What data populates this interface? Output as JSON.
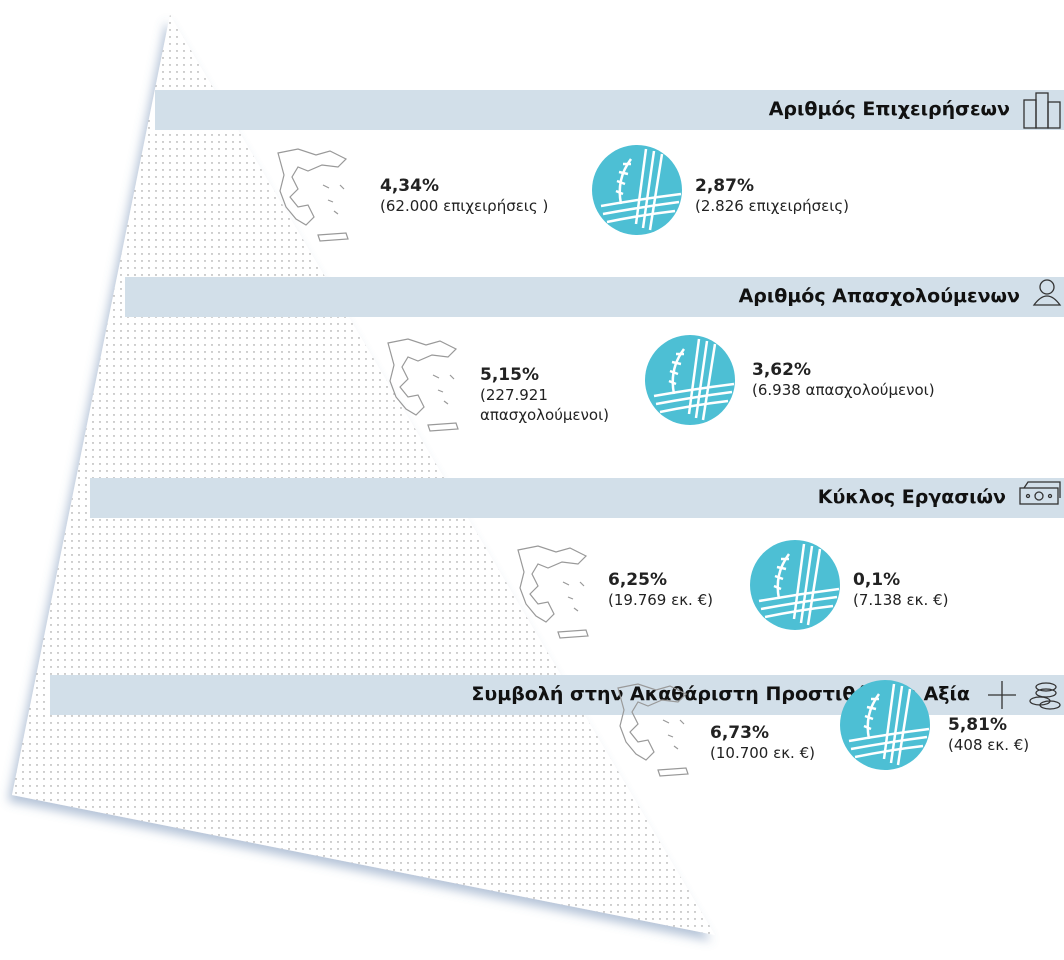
{
  "sections": [
    {
      "title": "Αριθμός Επιχειρήσεων",
      "greece": {
        "percent": "4,34%",
        "detail": "(62.000 επιχειρήσεις )"
      },
      "organization": {
        "percent": "2,87%",
        "detail": "(2.826 επιχειρήσεις)"
      }
    },
    {
      "title": "Αριθμός Απασχολούμενων",
      "greece": {
        "percent": "5,15%",
        "detail": "(227.921 απασχολούμενοι)"
      },
      "organization": {
        "percent": "3,62%",
        "detail": "(6.938 απασχολούμενοι)"
      }
    },
    {
      "title": "Κύκλος Εργασιών",
      "greece": {
        "percent": "6,25%",
        "detail": "(19.769 εκ. €)"
      },
      "organization": {
        "percent": "0,1%",
        "detail": "(7.138 εκ. €)"
      }
    },
    {
      "title": "Συμβολή στην Ακαθάριστη Προστιθέμενη Αξία",
      "greece": {
        "percent": "6,73%",
        "detail": "(10.700 εκ. €)"
      },
      "organization": {
        "percent": "5,81%",
        "detail": "(408 εκ. €)"
      }
    }
  ]
}
